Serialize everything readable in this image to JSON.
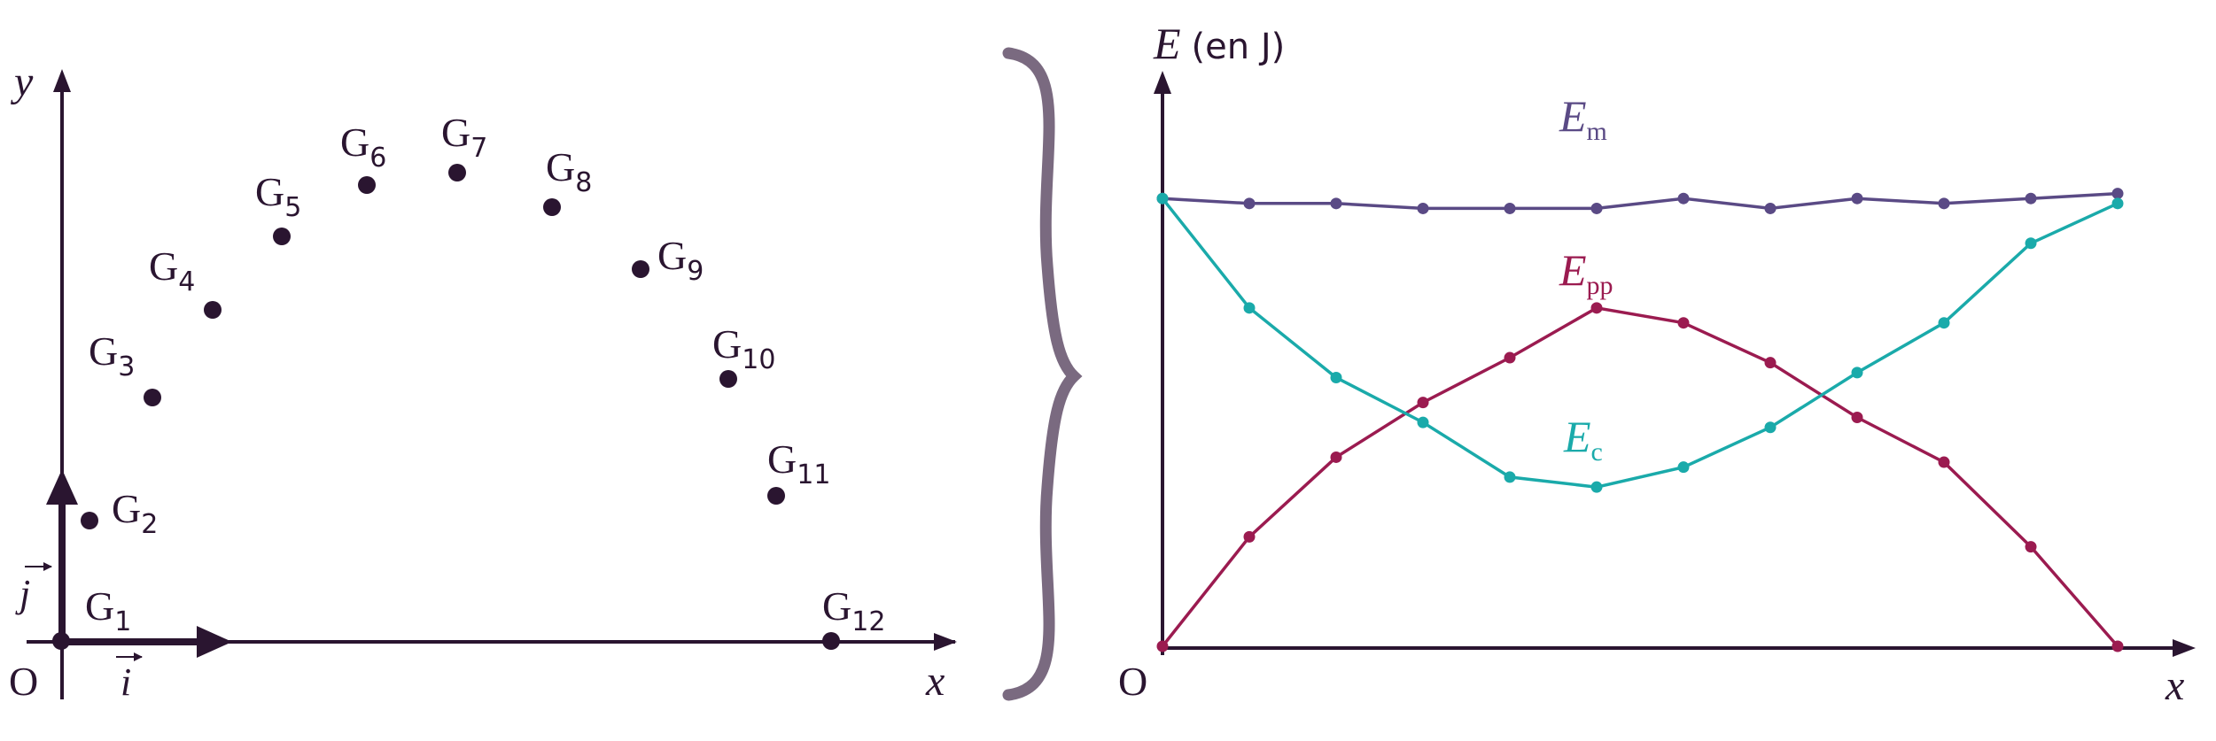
{
  "colors": {
    "ink": "#2a1530",
    "brace": "#7a6a80",
    "em": "#5a4a85",
    "epp": "#9b1b50",
    "ec": "#1aaaaa"
  },
  "left_panel": {
    "origin_label": "O",
    "x_label": "x",
    "y_label": "y",
    "i_label": "i",
    "j_label": "j",
    "points": [
      {
        "name": "G",
        "sub": "1"
      },
      {
        "name": "G",
        "sub": "2"
      },
      {
        "name": "G",
        "sub": "3"
      },
      {
        "name": "G",
        "sub": "4"
      },
      {
        "name": "G",
        "sub": "5"
      },
      {
        "name": "G",
        "sub": "6"
      },
      {
        "name": "G",
        "sub": "7"
      },
      {
        "name": "G",
        "sub": "8"
      },
      {
        "name": "G",
        "sub": "9"
      },
      {
        "name": "G",
        "sub": "10"
      },
      {
        "name": "G",
        "sub": "11"
      },
      {
        "name": "G",
        "sub": "12"
      }
    ]
  },
  "chart_data": {
    "type": "line",
    "ylabel": {
      "symbol": "E",
      "unit": "(en J)"
    },
    "xlabel": "x",
    "origin_label": "O",
    "x": [
      0,
      1,
      2,
      3,
      4,
      5,
      6,
      7,
      8,
      9,
      10,
      11
    ],
    "series": [
      {
        "name": "E",
        "sub": "m",
        "color": "#5a4a85",
        "values": [
          0.9,
          0.89,
          0.89,
          0.88,
          0.88,
          0.88,
          0.9,
          0.88,
          0.9,
          0.89,
          0.9,
          0.91
        ]
      },
      {
        "name": "E",
        "sub": "pp",
        "color": "#9b1b50",
        "values": [
          0.0,
          0.22,
          0.38,
          0.49,
          0.58,
          0.68,
          0.65,
          0.57,
          0.46,
          0.37,
          0.2,
          0.0
        ]
      },
      {
        "name": "E",
        "sub": "c",
        "color": "#1aaaaa",
        "values": [
          0.9,
          0.68,
          0.54,
          0.45,
          0.34,
          0.32,
          0.36,
          0.44,
          0.55,
          0.65,
          0.81,
          0.89
        ]
      }
    ]
  }
}
